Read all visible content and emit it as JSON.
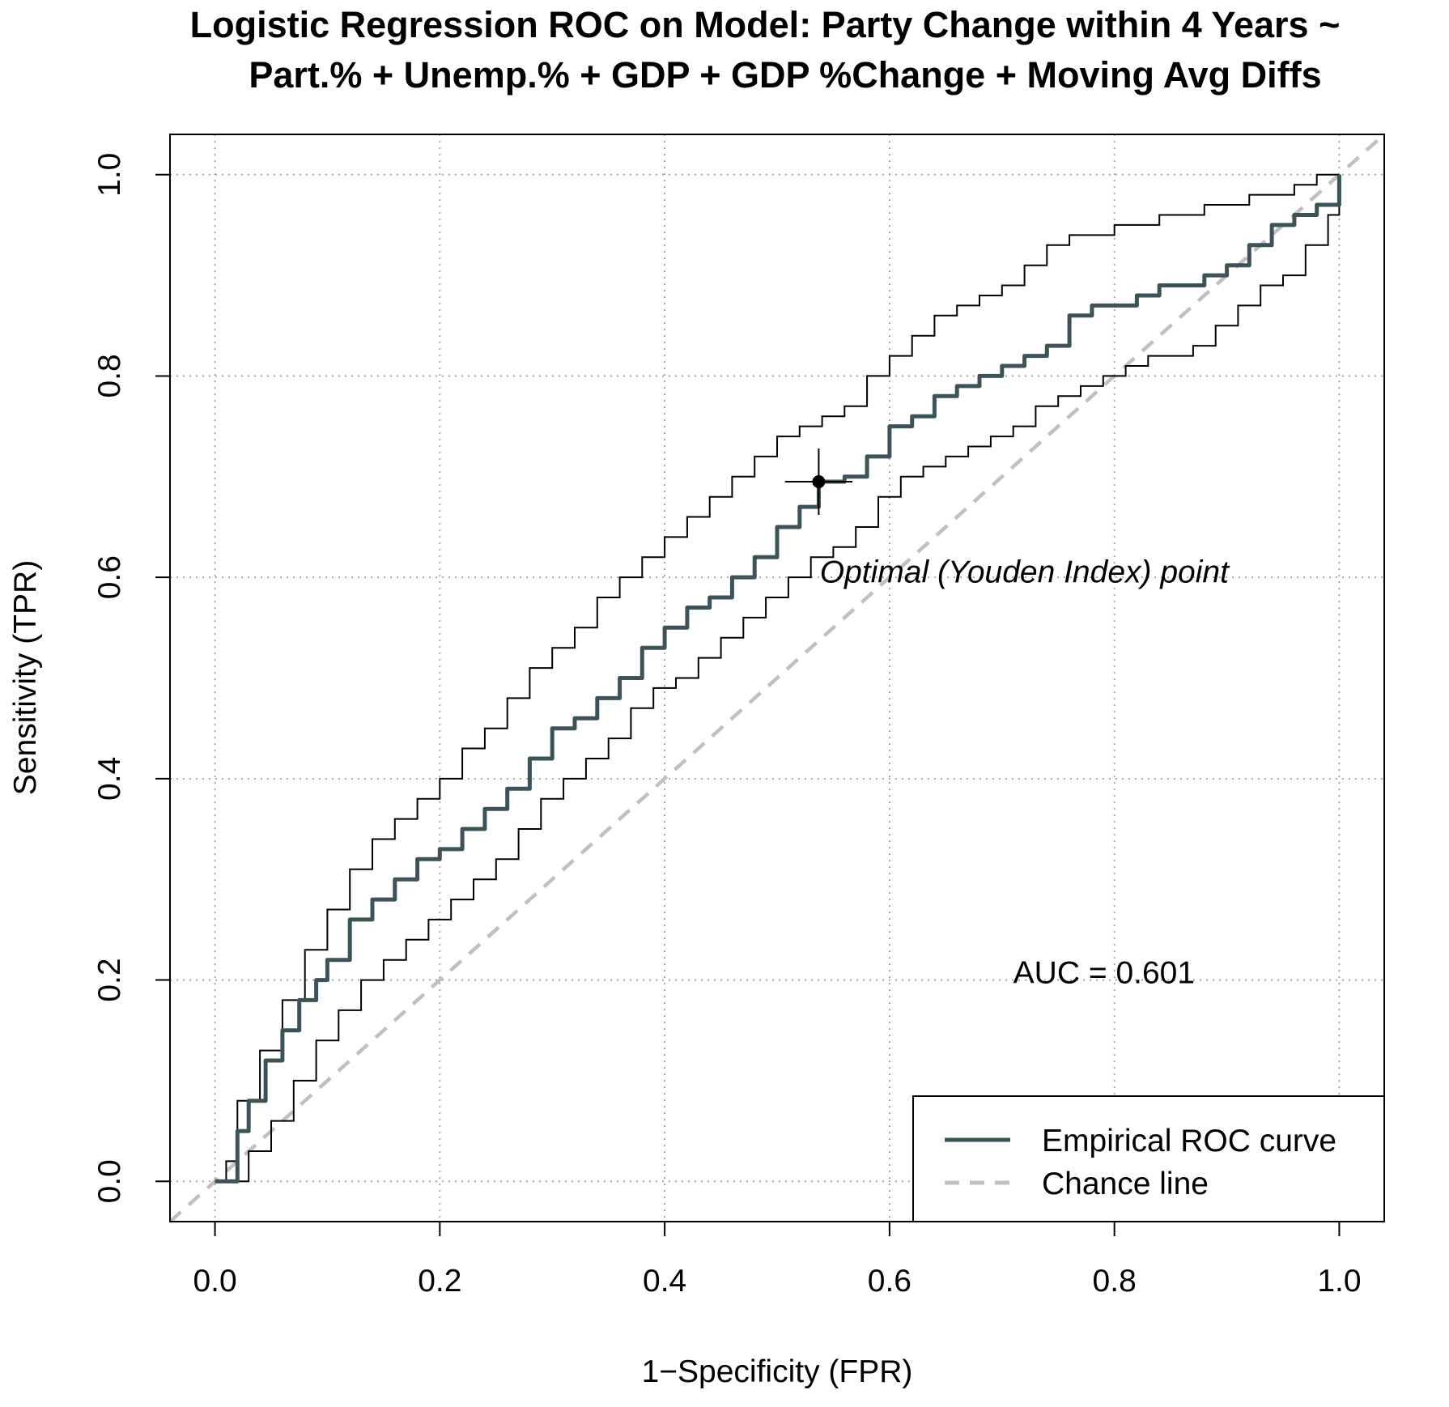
{
  "chart_data": {
    "type": "line",
    "title_lines": [
      "Logistic Regression ROC on Model: Party Change within 4 Years ~",
      "Part.% + Unemp.% + GDP + GDP %Change + Moving Avg Diffs"
    ],
    "xlabel": "1−Specificity (FPR)",
    "ylabel": "Sensitivity (TPR)",
    "xlim": [
      -0.04,
      1.04
    ],
    "ylim": [
      -0.04,
      1.04
    ],
    "x_ticks": [
      0.0,
      0.2,
      0.4,
      0.6,
      0.8,
      1.0
    ],
    "y_ticks": [
      0.0,
      0.2,
      0.4,
      0.6,
      0.8,
      1.0
    ],
    "x_tick_labels": [
      "0.0",
      "0.2",
      "0.4",
      "0.6",
      "0.8",
      "1.0"
    ],
    "y_tick_labels": [
      "0.0",
      "0.2",
      "0.4",
      "0.6",
      "0.8",
      "1.0"
    ],
    "grid": true,
    "colors": {
      "roc": "#3d5357",
      "band": "#000000",
      "chance": "#c0c0c0",
      "grid": "#a0a0a0"
    },
    "series": [
      {
        "name": "Empirical ROC curve",
        "role": "roc",
        "x": [
          0.0,
          0.015,
          0.02,
          0.03,
          0.045,
          0.06,
          0.075,
          0.09,
          0.1,
          0.12,
          0.14,
          0.16,
          0.18,
          0.2,
          0.22,
          0.24,
          0.26,
          0.28,
          0.3,
          0.32,
          0.34,
          0.36,
          0.38,
          0.4,
          0.42,
          0.44,
          0.46,
          0.48,
          0.5,
          0.52,
          0.537,
          0.56,
          0.58,
          0.6,
          0.62,
          0.64,
          0.66,
          0.68,
          0.7,
          0.72,
          0.74,
          0.76,
          0.78,
          0.8,
          0.82,
          0.84,
          0.86,
          0.88,
          0.9,
          0.92,
          0.94,
          0.96,
          0.98,
          1.0
        ],
        "y": [
          0.0,
          0.0,
          0.05,
          0.08,
          0.12,
          0.15,
          0.18,
          0.2,
          0.22,
          0.26,
          0.28,
          0.3,
          0.32,
          0.33,
          0.35,
          0.37,
          0.39,
          0.42,
          0.45,
          0.46,
          0.48,
          0.5,
          0.53,
          0.55,
          0.57,
          0.58,
          0.6,
          0.62,
          0.65,
          0.67,
          0.695,
          0.7,
          0.72,
          0.75,
          0.76,
          0.78,
          0.79,
          0.8,
          0.81,
          0.82,
          0.83,
          0.86,
          0.87,
          0.87,
          0.88,
          0.89,
          0.89,
          0.9,
          0.91,
          0.93,
          0.95,
          0.96,
          0.97,
          1.0
        ]
      },
      {
        "name": "",
        "role": "band-upper",
        "x": [
          0.0,
          0.01,
          0.02,
          0.04,
          0.06,
          0.08,
          0.1,
          0.12,
          0.14,
          0.16,
          0.18,
          0.2,
          0.22,
          0.24,
          0.26,
          0.28,
          0.3,
          0.32,
          0.34,
          0.36,
          0.38,
          0.4,
          0.42,
          0.44,
          0.46,
          0.48,
          0.5,
          0.52,
          0.54,
          0.56,
          0.58,
          0.6,
          0.62,
          0.64,
          0.66,
          0.68,
          0.7,
          0.72,
          0.74,
          0.76,
          0.78,
          0.8,
          0.82,
          0.84,
          0.86,
          0.88,
          0.9,
          0.92,
          0.94,
          0.96,
          0.98,
          1.0
        ],
        "y": [
          0.0,
          0.02,
          0.08,
          0.13,
          0.18,
          0.23,
          0.27,
          0.31,
          0.34,
          0.36,
          0.38,
          0.4,
          0.43,
          0.45,
          0.48,
          0.51,
          0.53,
          0.55,
          0.58,
          0.6,
          0.62,
          0.64,
          0.66,
          0.68,
          0.7,
          0.72,
          0.74,
          0.75,
          0.76,
          0.77,
          0.8,
          0.82,
          0.84,
          0.86,
          0.87,
          0.88,
          0.89,
          0.91,
          0.93,
          0.94,
          0.94,
          0.95,
          0.95,
          0.96,
          0.96,
          0.97,
          0.97,
          0.98,
          0.98,
          0.99,
          1.0,
          1.0
        ]
      },
      {
        "name": "",
        "role": "band-lower",
        "x": [
          0.0,
          0.02,
          0.03,
          0.05,
          0.07,
          0.09,
          0.11,
          0.13,
          0.15,
          0.17,
          0.19,
          0.21,
          0.23,
          0.25,
          0.27,
          0.29,
          0.31,
          0.33,
          0.35,
          0.37,
          0.39,
          0.41,
          0.43,
          0.45,
          0.47,
          0.49,
          0.51,
          0.53,
          0.55,
          0.57,
          0.59,
          0.61,
          0.63,
          0.65,
          0.67,
          0.69,
          0.71,
          0.73,
          0.75,
          0.77,
          0.79,
          0.81,
          0.83,
          0.85,
          0.87,
          0.89,
          0.91,
          0.93,
          0.95,
          0.97,
          0.99,
          1.0
        ],
        "y": [
          0.0,
          0.0,
          0.03,
          0.06,
          0.1,
          0.14,
          0.17,
          0.2,
          0.22,
          0.24,
          0.26,
          0.28,
          0.3,
          0.32,
          0.35,
          0.38,
          0.4,
          0.42,
          0.44,
          0.47,
          0.49,
          0.5,
          0.52,
          0.54,
          0.56,
          0.58,
          0.6,
          0.62,
          0.63,
          0.65,
          0.68,
          0.7,
          0.71,
          0.72,
          0.73,
          0.74,
          0.75,
          0.77,
          0.78,
          0.79,
          0.8,
          0.81,
          0.82,
          0.82,
          0.83,
          0.85,
          0.87,
          0.89,
          0.9,
          0.93,
          0.96,
          1.0
        ]
      },
      {
        "name": "Chance line",
        "role": "chance",
        "x": [
          -0.04,
          1.04
        ],
        "y": [
          -0.04,
          1.04
        ]
      }
    ],
    "optimal_point": {
      "x": 0.537,
      "y": 0.695,
      "x_err": 0.03,
      "y_err": 0.033
    },
    "annotations": [
      {
        "text": "Optimal (Youden Index) point",
        "x": 0.538,
        "y": 0.595,
        "italic": true
      },
      {
        "text": "AUC = 0.601",
        "x": 0.71,
        "y": 0.197,
        "italic": false
      }
    ],
    "legend": {
      "placement": "bottom-right",
      "entries": [
        {
          "label": "Empirical ROC curve",
          "style": "solid",
          "color": "#3d5357"
        },
        {
          "label": "Chance line",
          "style": "dashed",
          "color": "#c0c0c0"
        }
      ]
    }
  }
}
